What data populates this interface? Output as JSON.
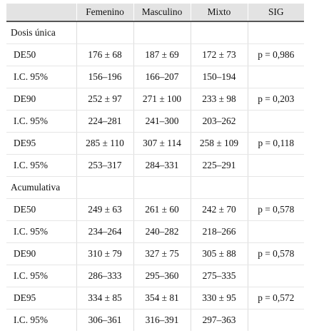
{
  "table": {
    "headers": [
      "",
      "Femenino",
      "Masculino",
      "Mixto",
      "SIG"
    ],
    "rows": [
      {
        "type": "section",
        "cells": [
          "Dosis única",
          "",
          "",
          "",
          ""
        ]
      },
      {
        "type": "data",
        "cells": [
          "DE50",
          "176 ± 68",
          "187 ± 69",
          "172 ± 73",
          "p = 0,986"
        ]
      },
      {
        "type": "data",
        "cells": [
          "I.C. 95%",
          "156–196",
          "166–207",
          "150–194",
          ""
        ]
      },
      {
        "type": "data",
        "cells": [
          "DE90",
          "252 ± 97",
          "271 ± 100",
          "233 ± 98",
          "p = 0,203"
        ]
      },
      {
        "type": "data",
        "cells": [
          "I.C. 95%",
          "224–281",
          "241–300",
          "203–262",
          ""
        ]
      },
      {
        "type": "data",
        "cells": [
          "DE95",
          "285 ± 110",
          "307 ± 114",
          "258 ± 109",
          "p = 0,118"
        ]
      },
      {
        "type": "data",
        "cells": [
          "I.C. 95%",
          "253–317",
          "284–331",
          "225–291",
          ""
        ]
      },
      {
        "type": "section",
        "cells": [
          "Acumulativa",
          "",
          "",
          "",
          ""
        ]
      },
      {
        "type": "data",
        "cells": [
          "DE50",
          "249 ± 63",
          "261 ± 60",
          "242 ± 70",
          "p = 0,578"
        ]
      },
      {
        "type": "data",
        "cells": [
          "I.C. 95%",
          "234–264",
          "240–282",
          "218–266",
          ""
        ]
      },
      {
        "type": "data",
        "cells": [
          "DE90",
          "310 ± 79",
          "327 ± 75",
          "305 ± 88",
          "p = 0,578"
        ]
      },
      {
        "type": "data",
        "cells": [
          "I.C. 95%",
          "286–333",
          "295–360",
          "275–335",
          ""
        ]
      },
      {
        "type": "data",
        "cells": [
          "DE95",
          "334 ± 85",
          "354 ± 81",
          "330 ± 95",
          "p = 0,572"
        ]
      },
      {
        "type": "data",
        "cells": [
          "I.C. 95%",
          "306–361",
          "316–391",
          "297–363",
          ""
        ]
      }
    ]
  }
}
